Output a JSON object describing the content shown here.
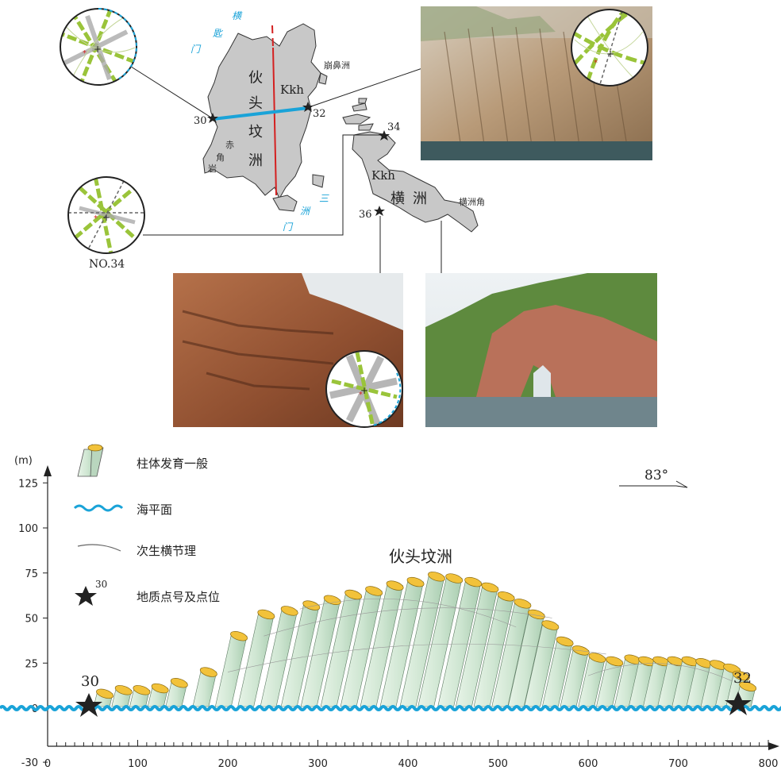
{
  "map": {
    "island_main": [
      "伙",
      "头",
      "坟",
      "洲"
    ],
    "island_east": [
      "横",
      "洲"
    ],
    "rock_code_main": "Kkh",
    "rock_code_east": "Kkh",
    "place_shanbi": "崩鼻洲",
    "place_chijiao": [
      "赤",
      "角",
      "岩"
    ],
    "place_hengzhoujiao": "横洲角",
    "channel_north": [
      "横",
      "匙",
      "门"
    ],
    "channel_south": [
      "三",
      "洲",
      "门"
    ],
    "station_30": "30",
    "station_32": "32",
    "station_34": "34",
    "station_36": "36",
    "rose_caption": "NO.34"
  },
  "legend": {
    "column": "柱体发育一般",
    "sea_level": "海平面",
    "joint": "次生横节理",
    "station": "地质点号及点位",
    "station_example": "30"
  },
  "section": {
    "title": "伙头坟洲",
    "y_unit": "(m)",
    "y_ticks": [
      "125",
      "100",
      "75",
      "50",
      "25",
      "0",
      "-30"
    ],
    "x_ticks": [
      "0",
      "100",
      "200",
      "300",
      "400",
      "500",
      "600",
      "700",
      "800"
    ],
    "bearing": "83°",
    "label_30": "30",
    "label_32": "32"
  },
  "colors": {
    "sea": "#1aa3d8",
    "island": "#c8c8c8",
    "column_fill": "#d6ecd8",
    "column_top": "#f2c23a",
    "rose_green": "#9ac43a",
    "fault_red": "#d42020"
  }
}
